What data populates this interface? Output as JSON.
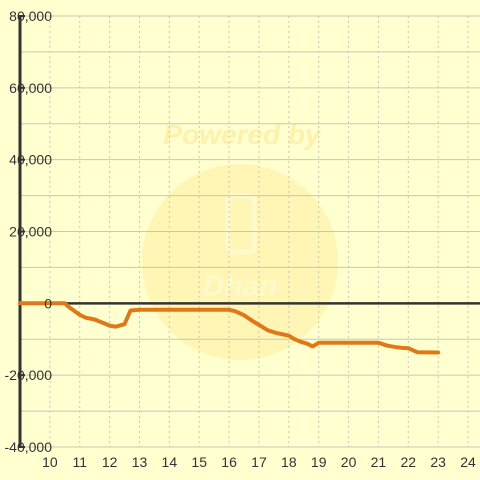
{
  "chart_data": {
    "type": "line",
    "title": "",
    "xlabel": "",
    "ylabel": "",
    "xlim": [
      9,
      24.4
    ],
    "ylim": [
      -40000,
      80000
    ],
    "x_ticks": [
      10,
      11,
      12,
      13,
      14,
      15,
      16,
      17,
      18,
      19,
      20,
      21,
      22,
      23,
      24
    ],
    "y_ticks": [
      -40000,
      -20000,
      0,
      20000,
      40000,
      60000,
      80000
    ],
    "y_tick_labels": [
      "-40,000",
      "-20,000",
      "0",
      "20,000",
      "40,000",
      "60,000",
      "80,000"
    ],
    "grid": true,
    "legend": "none",
    "colors": {
      "background": "#ffffd0",
      "series": "#e07818",
      "grid": "#c8c8b4",
      "axis": "#333333",
      "zero_line": "#333333"
    },
    "watermark": {
      "line1": "Powered by",
      "line2": "Dhan"
    },
    "series": [
      {
        "x": [
          9,
          10.5,
          10.6,
          10.8,
          11,
          11.2,
          11.5,
          11.8,
          12,
          12.2,
          12.5,
          12.7,
          13,
          14,
          15,
          16,
          16.2,
          16.5,
          16.8,
          17,
          17.3,
          17.6,
          18,
          18.2,
          18.4,
          18.6,
          18.8,
          19,
          20,
          20.7,
          21,
          21.3,
          21.6,
          21.8,
          22,
          22.3,
          23
        ],
        "y": [
          0,
          0,
          -800,
          -2000,
          -3200,
          -4000,
          -4500,
          -5500,
          -6200,
          -6500,
          -5800,
          -2000,
          -1800,
          -1800,
          -1800,
          -1800,
          -2200,
          -3300,
          -5000,
          -6000,
          -7500,
          -8300,
          -9000,
          -10000,
          -10700,
          -11200,
          -12000,
          -11000,
          -11000,
          -11000,
          -11000,
          -11800,
          -12200,
          -12400,
          -12500,
          -13600,
          -13700
        ]
      }
    ]
  }
}
